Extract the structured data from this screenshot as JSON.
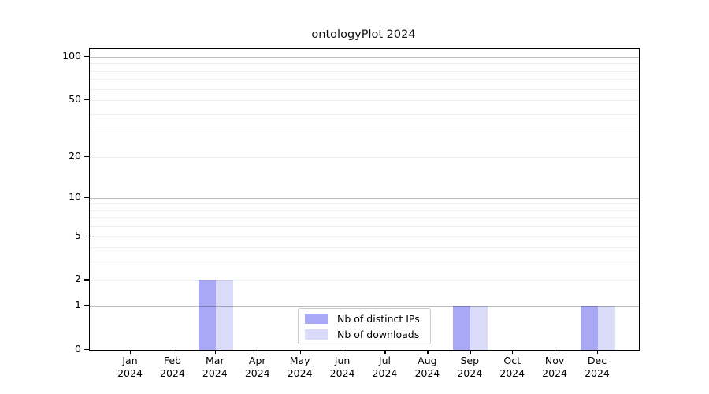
{
  "chart_data": {
    "type": "bar",
    "title": "ontologyPlot 2024",
    "categories": [
      "Jan",
      "Feb",
      "Mar",
      "Apr",
      "May",
      "Jun",
      "Jul",
      "Aug",
      "Sep",
      "Oct",
      "Nov",
      "Dec"
    ],
    "category_year": "2024",
    "series": [
      {
        "name": "Nb of distinct IPs",
        "color": "#a8a8f7",
        "values": [
          0,
          0,
          2,
          0,
          0,
          0,
          0,
          0,
          1,
          0,
          0,
          1
        ]
      },
      {
        "name": "Nb of downloads",
        "color": "#dadaf9",
        "values": [
          0,
          0,
          2,
          0,
          0,
          0,
          0,
          0,
          1,
          0,
          0,
          1
        ]
      }
    ],
    "yscale": "log1p",
    "ylim": [
      0,
      113
    ],
    "ytick_values": [
      0,
      1,
      2,
      5,
      10,
      20,
      50,
      100
    ],
    "ytick_labels": [
      "0",
      "1",
      "2",
      "5",
      "10",
      "20",
      "50",
      "100"
    ],
    "major_grid_values": [
      1,
      10,
      100
    ],
    "minor_grid_values": [
      2,
      3,
      4,
      5,
      6,
      7,
      8,
      9,
      20,
      30,
      40,
      50,
      60,
      70,
      80,
      90
    ],
    "grid": true,
    "legend_position": "lower center",
    "axis_color": "#000000",
    "major_grid_color": "#bfbfbf",
    "minor_grid_color": "#efefef",
    "background_color": "#ffffff"
  }
}
